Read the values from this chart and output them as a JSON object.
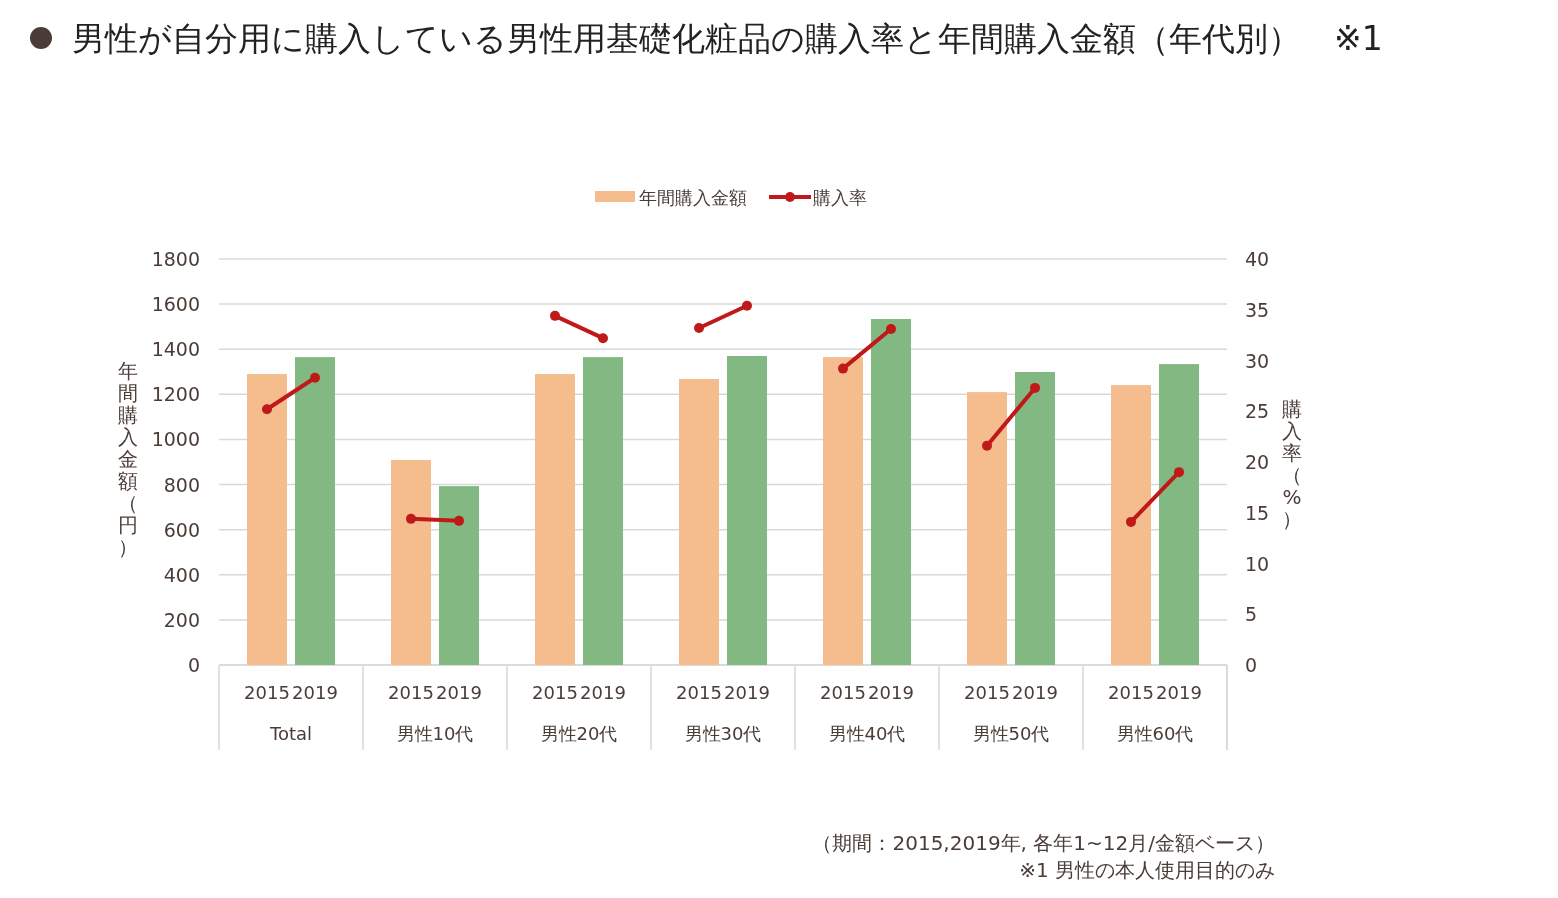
{
  "chart_data": {
    "type": "bar",
    "title": "男性が自分用に購入している男性用基礎化粧品の購入率と年間購入金額（年代別）　※1",
    "ylabel": "年間購入金額（円）",
    "y2label": "購入率（%）",
    "categories": [
      "2015",
      "2019",
      "2015",
      "2019",
      "2015",
      "2019",
      "2015",
      "2019",
      "2015",
      "2019",
      "2015",
      "2019",
      "2015",
      "2019"
    ],
    "series": [
      {
        "name": "年間購入金額",
        "color": "#f5bc8e",
        "colors": [
          "#f5bc8e",
          "#82b881",
          "#f5bc8e",
          "#82b881",
          "#f5bc8e",
          "#82b881",
          "#f5bc8e",
          "#82b881",
          "#f5bc8e",
          "#82b881",
          "#f5bc8e",
          "#82b881",
          "#f5bc8e",
          "#82b881"
        ],
        "values": [
          1290,
          1365,
          909,
          793,
          1290,
          1365,
          1268,
          1370,
          1365,
          1534,
          1210,
          1299,
          1241,
          1334
        ]
      },
      {
        "name": "購入率",
        "type": "line",
        "axis": "y2",
        "color": "#c0191a",
        "values": [
          25.2,
          28.3,
          null,
          null,
          null,
          null,
          null,
          null,
          null,
          null,
          null,
          null,
          null,
          null
        ]
      },
      {
        "type": "line",
        "axis": "y2",
        "color": "#c0191a",
        "values": [
          null,
          null,
          14.4,
          14.2,
          null,
          null,
          null,
          null,
          null,
          null,
          null,
          null,
          null,
          null
        ]
      },
      {
        "type": "line",
        "axis": "y2",
        "color": "#c0191a",
        "values": [
          null,
          null,
          null,
          null,
          34.4,
          32.2,
          null,
          null,
          null,
          null,
          null,
          null,
          null,
          null
        ]
      },
      {
        "type": "line",
        "axis": "y2",
        "color": "#c0191a",
        "values": [
          null,
          null,
          null,
          null,
          null,
          null,
          33.2,
          35.4,
          null,
          null,
          null,
          null,
          null,
          null
        ]
      },
      {
        "type": "line",
        "axis": "y2",
        "color": "#c0191a",
        "values": [
          null,
          null,
          null,
          null,
          null,
          null,
          null,
          null,
          29.2,
          33.1,
          null,
          null,
          null,
          null
        ]
      },
      {
        "type": "line",
        "axis": "y2",
        "color": "#c0191a",
        "values": [
          null,
          null,
          null,
          null,
          null,
          null,
          null,
          null,
          null,
          null,
          21.6,
          27.3,
          null,
          null
        ]
      },
      {
        "type": "line",
        "axis": "y2",
        "color": "#c0191a",
        "values": [
          null,
          null,
          null,
          null,
          null,
          null,
          null,
          null,
          null,
          null,
          null,
          null,
          14.1,
          19.0
        ]
      }
    ],
    "ylim": [
      0,
      1800
    ],
    "yticks": [
      0,
      200,
      400,
      600,
      800,
      1000,
      1200,
      1400,
      1600,
      1800
    ],
    "y2lim": [
      0,
      40
    ],
    "y2ticks": [
      0,
      5,
      10,
      15,
      20,
      25,
      30,
      35,
      40
    ],
    "grid": "y",
    "legend": "top",
    "marker": "circle",
    "line_style": "solid",
    "annotations": [
      "Total",
      "男性10代",
      "男性20代",
      "男性30代",
      "男性40代",
      "男性50代",
      "男性60代",
      "（期間：2015,2019年, 各年1~12月/金額ベース）",
      "※1 男性の本人使用目的のみ"
    ]
  }
}
